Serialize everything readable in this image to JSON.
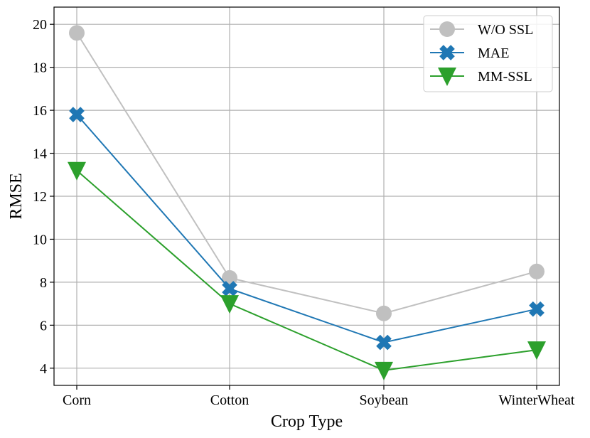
{
  "chart_data": {
    "type": "line",
    "xlabel": "Crop Type",
    "ylabel": "RMSE",
    "categories": [
      "Corn",
      "Cotton",
      "Soybean",
      "WinterWheat"
    ],
    "ylim": [
      3.2,
      20.8
    ],
    "yticks": [
      4,
      6,
      8,
      10,
      12,
      14,
      16,
      18,
      20
    ],
    "grid": true,
    "legend_position": "top-right",
    "series": [
      {
        "name": "W/O SSL",
        "values": [
          19.6,
          8.2,
          6.55,
          8.5
        ],
        "color": "#c0c0c0",
        "marker": "circle"
      },
      {
        "name": "MAE",
        "values": [
          15.8,
          7.7,
          5.2,
          6.75
        ],
        "color": "#1f77b4",
        "marker": "x"
      },
      {
        "name": "MM-SSL",
        "values": [
          13.2,
          7.0,
          3.9,
          4.85
        ],
        "color": "#2ca02c",
        "marker": "triangle-down"
      }
    ]
  }
}
